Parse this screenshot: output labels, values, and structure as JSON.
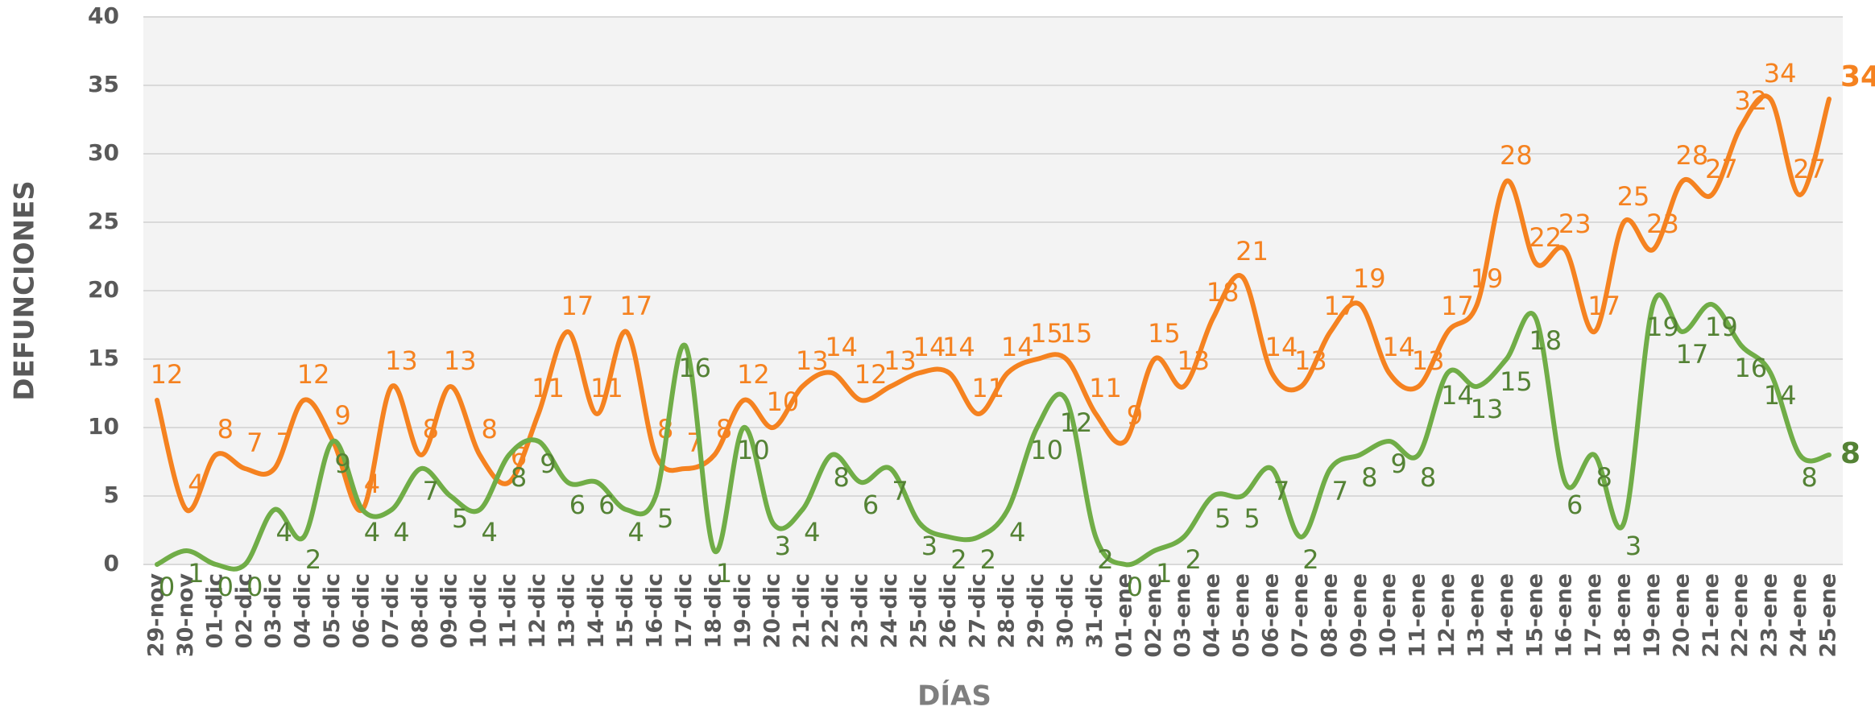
{
  "chart_data": {
    "type": "line",
    "x_label": "DÍAS",
    "y_label": "DEFUNCIONES",
    "categories": [
      "29-nov",
      "30-nov",
      "01-dic",
      "02-dic",
      "03-dic",
      "04-dic",
      "05-dic",
      "06-dic",
      "07-dic",
      "08-dic",
      "09-dic",
      "10-dic",
      "11-dic",
      "12-dic",
      "13-dic",
      "14-dic",
      "15-dic",
      "16-dic",
      "17-dic",
      "18-dic",
      "19-dic",
      "20-dic",
      "21-dic",
      "22-dic",
      "23-dic",
      "24-dic",
      "25-dic",
      "26-dic",
      "27-dic",
      "28-dic",
      "29-dic",
      "30-dic",
      "31-dic",
      "01-ene",
      "02-ene",
      "03-ene",
      "04-ene",
      "05-ene",
      "06-ene",
      "07-ene",
      "08-ene",
      "09-ene",
      "10-ene",
      "11-ene",
      "12-ene",
      "13-ene",
      "14-ene",
      "15-ene",
      "16-ene",
      "17-ene",
      "18-ene",
      "19-ene",
      "20-ene",
      "21-ene",
      "22-ene",
      "23-ene",
      "24-ene",
      "25-ene"
    ],
    "series": [
      {
        "color": "#f58220",
        "label_color": "#f58220",
        "values": [
          12,
          4,
          8,
          7,
          7,
          12,
          9,
          4,
          13,
          8,
          13,
          8,
          6,
          11,
          17,
          11,
          17,
          8,
          7,
          8,
          12,
          10,
          13,
          14,
          12,
          13,
          14,
          14,
          11,
          14,
          15,
          15,
          11,
          9,
          15,
          13,
          18,
          21,
          14,
          13,
          17,
          19,
          14,
          13,
          17,
          19,
          28,
          22,
          23,
          17,
          25,
          23,
          28,
          27,
          32,
          34,
          27,
          34
        ]
      },
      {
        "color": "#70ad47",
        "label_color": "#548235",
        "values": [
          0,
          1,
          0,
          0,
          4,
          2,
          9,
          4,
          4,
          7,
          5,
          4,
          8,
          9,
          6,
          6,
          4,
          5,
          16,
          1,
          10,
          3,
          4,
          8,
          6,
          7,
          3,
          2,
          2,
          4,
          10,
          12,
          2,
          0,
          1,
          2,
          5,
          5,
          7,
          2,
          7,
          8,
          9,
          8,
          14,
          13,
          15,
          18,
          6,
          8,
          3,
          19,
          17,
          19,
          16,
          14,
          8,
          8
        ]
      }
    ],
    "ylim": [
      0,
      40
    ],
    "yticks": [
      0,
      5,
      10,
      15,
      20,
      25,
      30,
      35,
      40
    ],
    "grid": true
  }
}
